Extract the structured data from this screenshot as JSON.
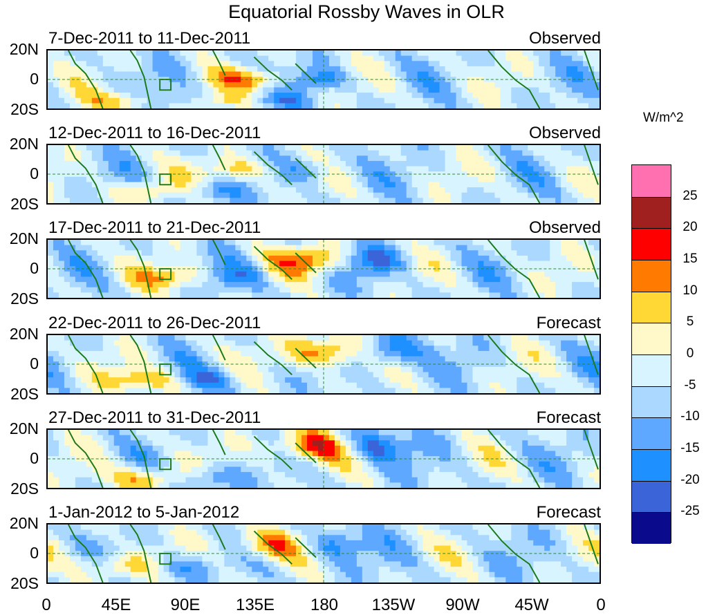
{
  "title": "Equatorial Rossby Waves in OLR",
  "colorbar": {
    "units": "W/m^2",
    "colors": [
      "#8a2be2",
      "#0a0a8c",
      "#3a64d8",
      "#1e90ff",
      "#5fa8ff",
      "#aad8ff",
      "#d8f4ff",
      "#fff8c8",
      "#ffd836",
      "#ff7a00",
      "#ff0000",
      "#a02020",
      "#ff70b0"
    ],
    "labels": [
      "-25",
      "-20",
      "-15",
      "-10",
      "-5",
      "0",
      "5",
      "10",
      "15",
      "20",
      "25"
    ]
  },
  "y_ticks": [
    "20N",
    "0",
    "20S"
  ],
  "x_ticks": [
    "0",
    "45E",
    "90E",
    "135E",
    "180",
    "135W",
    "90W",
    "45W",
    "0"
  ],
  "panels": [
    {
      "date_range": "7-Dec-2011 to 11-Dec-2011",
      "status": "Observed",
      "blobs": [
        [
          -8,
          12,
          75,
          0,
          16,
          5
        ],
        [
          -8,
          12,
          25,
          -25,
          12,
          5
        ],
        [
          -8,
          12,
          60,
          -25,
          12,
          4
        ]
      ]
    },
    {
      "date_range": "12-Dec-2011 to 16-Dec-2011",
      "status": "Observed",
      "blobs": [
        [
          -6,
          10,
          70,
          5,
          14,
          6
        ],
        [
          -6,
          10,
          35,
          -20,
          12,
          5
        ]
      ]
    },
    {
      "date_range": "17-Dec-2011 to 21-Dec-2011",
      "status": "Observed",
      "blobs": [
        [
          -8,
          10,
          95,
          10,
          18,
          7
        ],
        [
          -8,
          10,
          45,
          -10,
          14,
          6
        ]
      ]
    },
    {
      "date_range": "22-Dec-2011 to 26-Dec-2011",
      "status": "Forecast",
      "blobs": [
        [
          -8,
          10,
          100,
          14,
          22,
          8
        ],
        [
          -8,
          10,
          35,
          -18,
          16,
          6
        ]
      ]
    },
    {
      "date_range": "27-Dec-2011 to 31-Dec-2011",
      "status": "Forecast",
      "blobs": [
        [
          -8,
          10,
          95,
          15,
          22,
          8
        ],
        [
          -8,
          10,
          35,
          -22,
          16,
          6
        ]
      ]
    },
    {
      "date_range": "1-Jan-2012 to 5-Jan-2012",
      "status": "Forecast",
      "blobs": [
        [
          -8,
          10,
          80,
          10,
          18,
          8
        ],
        [
          -8,
          10,
          25,
          -15,
          14,
          6
        ]
      ]
    }
  ]
}
